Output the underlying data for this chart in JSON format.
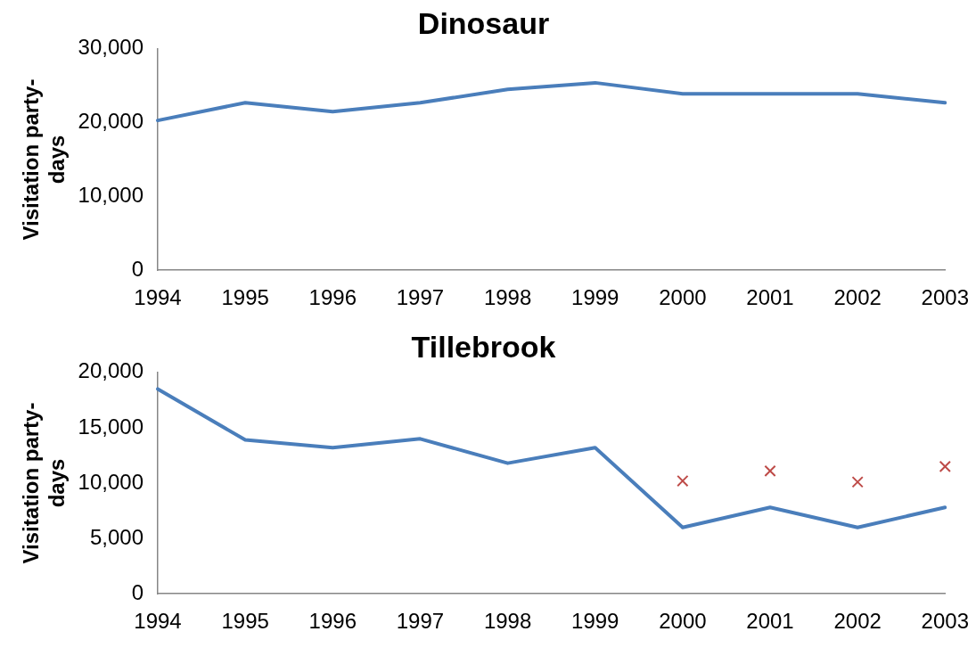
{
  "chart_data": [
    {
      "type": "line",
      "title": "Dinosaur",
      "ylabel": "Visitation party-days",
      "categories": [
        "1994",
        "1995",
        "1996",
        "1997",
        "1998",
        "1999",
        "2000",
        "2001",
        "2002",
        "2003"
      ],
      "series": [
        {
          "color": "#4a7ebb",
          "values": [
            20300,
            22700,
            21500,
            22700,
            24500,
            25400,
            23900,
            23900,
            23900,
            22700
          ]
        }
      ],
      "ylim": [
        0,
        30000
      ],
      "yticks": [
        {
          "value": 0,
          "label": "0"
        },
        {
          "value": 10000,
          "label": "10,000"
        },
        {
          "value": 20000,
          "label": "20,000"
        },
        {
          "value": 30000,
          "label": "30,000"
        }
      ],
      "grid": false,
      "legend": false,
      "marker": "none"
    },
    {
      "type": "line",
      "title": "Tillebrook",
      "ylabel": "Visitation party-days",
      "categories": [
        "1994",
        "1995",
        "1996",
        "1997",
        "1998",
        "1999",
        "2000",
        "2001",
        "2002",
        "2003"
      ],
      "series": [
        {
          "color": "#4a7ebb",
          "values": [
            18500,
            13900,
            13200,
            14000,
            11800,
            13200,
            6000,
            7800,
            6000,
            7800
          ]
        },
        {
          "type": "scatter",
          "marker": "cross",
          "color": "#be4b48",
          "values": [
            null,
            null,
            null,
            null,
            null,
            null,
            10200,
            11100,
            10100,
            11500
          ]
        }
      ],
      "ylim": [
        0,
        20000
      ],
      "yticks": [
        {
          "value": 0,
          "label": "0"
        },
        {
          "value": 5000,
          "label": "5,000"
        },
        {
          "value": 10000,
          "label": "10,000"
        },
        {
          "value": 15000,
          "label": "15,000"
        },
        {
          "value": 20000,
          "label": "20,000"
        }
      ],
      "grid": false,
      "legend": false,
      "marker": "none"
    }
  ]
}
